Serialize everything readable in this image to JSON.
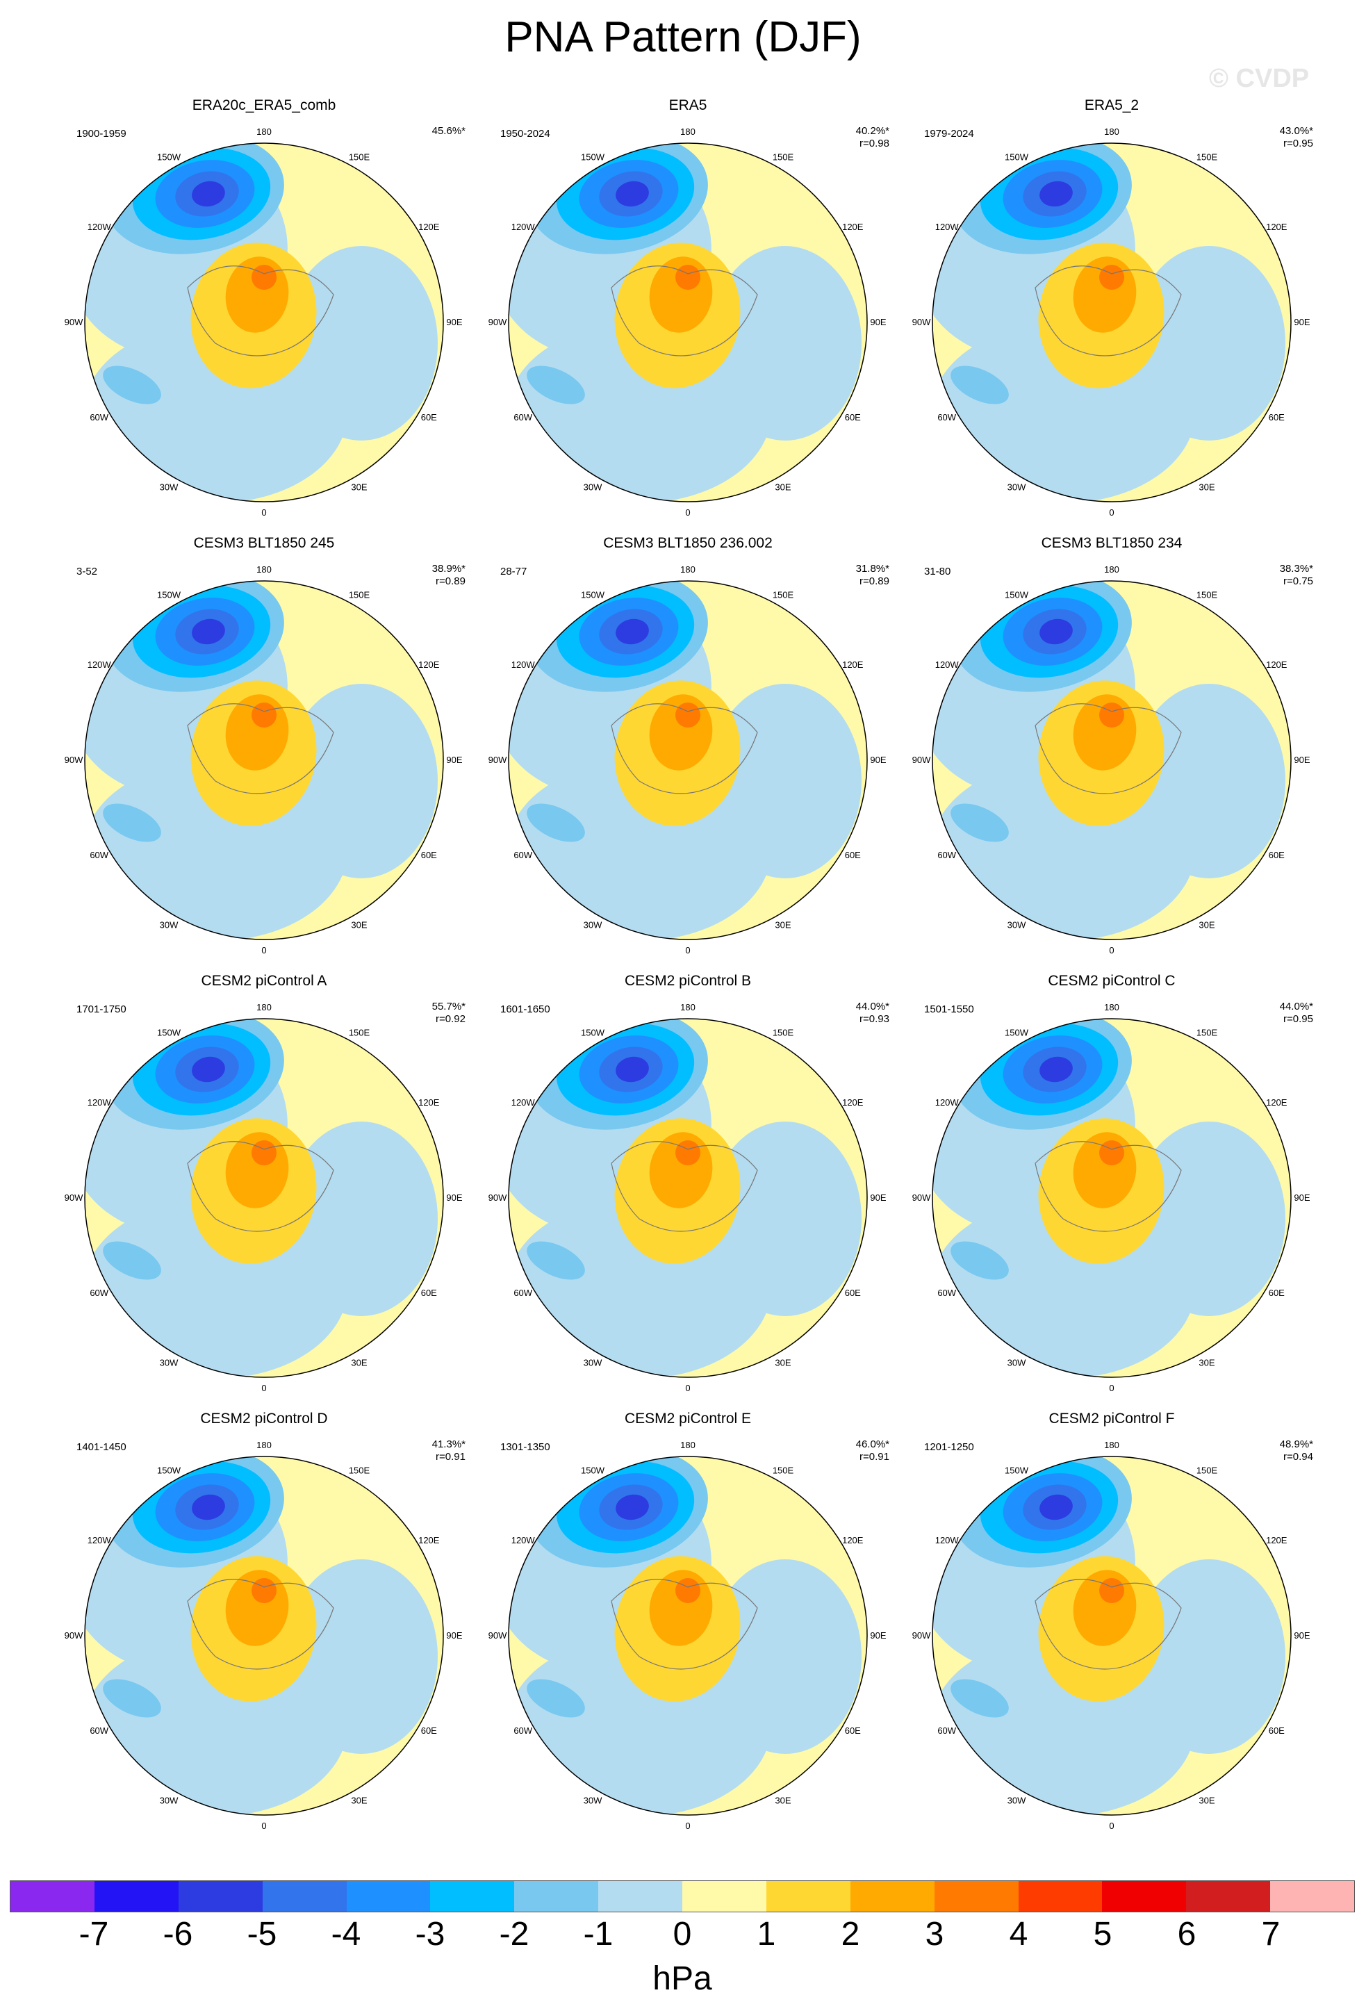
{
  "title": "PNA Pattern (DJF)",
  "watermark": "© CVDP",
  "lon_labels": [
    "180",
    "150E",
    "120E",
    "90E",
    "60E",
    "30E",
    "0",
    "30W",
    "60W",
    "90W",
    "120W",
    "150W"
  ],
  "panels": [
    {
      "title": "ERA20c_ERA5_comb",
      "years": "1900-1959",
      "pct": "45.6%*",
      "r": ""
    },
    {
      "title": "ERA5",
      "years": "1950-2024",
      "pct": "40.2%*",
      "r": "r=0.98"
    },
    {
      "title": "ERA5_2",
      "years": "1979-2024",
      "pct": "43.0%*",
      "r": "r=0.95"
    },
    {
      "title": "CESM3 BLT1850 245",
      "years": "3-52",
      "pct": "38.9%*",
      "r": "r=0.89"
    },
    {
      "title": "CESM3 BLT1850 236.002",
      "years": "28-77",
      "pct": "31.8%*",
      "r": "r=0.89"
    },
    {
      "title": "CESM3 BLT1850 234",
      "years": "31-80",
      "pct": "38.3%*",
      "r": "r=0.75"
    },
    {
      "title": "CESM2 piControl A",
      "years": "1701-1750",
      "pct": "55.7%*",
      "r": "r=0.92"
    },
    {
      "title": "CESM2 piControl B",
      "years": "1601-1650",
      "pct": "44.0%*",
      "r": "r=0.93"
    },
    {
      "title": "CESM2 piControl C",
      "years": "1501-1550",
      "pct": "44.0%*",
      "r": "r=0.95"
    },
    {
      "title": "CESM2 piControl D",
      "years": "1401-1450",
      "pct": "41.3%*",
      "r": "r=0.91"
    },
    {
      "title": "CESM2 piControl E",
      "years": "1301-1350",
      "pct": "46.0%*",
      "r": "r=0.91"
    },
    {
      "title": "CESM2 piControl F",
      "years": "1201-1250",
      "pct": "48.9%*",
      "r": "r=0.94"
    }
  ],
  "colorbar": {
    "colors": [
      "#8B28F0",
      "#2214F5",
      "#2C3CE0",
      "#3274EC",
      "#1E90FF",
      "#00BEFF",
      "#78C8F0",
      "#B4DCF0",
      "#FFFAAA",
      "#FFD732",
      "#FFAA00",
      "#FF7A00",
      "#FF3C00",
      "#F00000",
      "#D21E1E",
      "#FFB4B4"
    ],
    "ticks": [
      "-7",
      "-6",
      "-5",
      "-4",
      "-3",
      "-2",
      "-1",
      "0",
      "1",
      "2",
      "3",
      "4",
      "5",
      "6",
      "7"
    ],
    "units": "hPa"
  }
}
